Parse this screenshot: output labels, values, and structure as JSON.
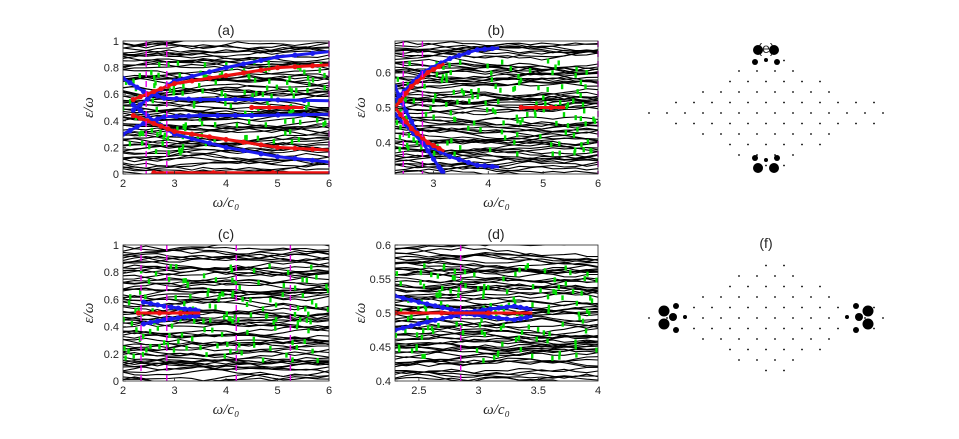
{
  "colors": {
    "bulk": "#000000",
    "green": "#00dd00",
    "red": "#ee1111",
    "blue": "#1a1aee",
    "magenta": "#ee00ee",
    "axis": "#262626"
  },
  "chart_data": [
    {
      "id": "a",
      "type": "line",
      "title": "(a)",
      "xlabel": "ω/c₀",
      "ylabel": "ε/ω",
      "xlim": [
        2,
        6
      ],
      "ylim": [
        0,
        1
      ],
      "xticks": [
        "2",
        "3",
        "4",
        "5",
        "6"
      ],
      "yticks": [
        "0",
        "0.2",
        "0.4",
        "0.6",
        "0.8",
        "1"
      ],
      "xtick_values": [
        2,
        3,
        4,
        5,
        6
      ],
      "ytick_values": [
        0,
        0.2,
        0.4,
        0.6,
        0.8,
        1
      ],
      "vlines": [
        2.45,
        2.85,
        6.0
      ],
      "series": [
        {
          "color": "blue",
          "points": [
            [
              2.0,
              0.72
            ],
            [
              2.4,
              0.62
            ],
            [
              2.8,
              0.57
            ],
            [
              3.5,
              0.56
            ],
            [
              4.5,
              0.56
            ],
            [
              6.0,
              0.55
            ]
          ]
        },
        {
          "color": "blue",
          "points": [
            [
              2.0,
              0.3
            ],
            [
              2.4,
              0.38
            ],
            [
              2.8,
              0.43
            ],
            [
              3.5,
              0.44
            ],
            [
              4.5,
              0.44
            ],
            [
              6.0,
              0.45
            ]
          ]
        },
        {
          "color": "blue",
          "points": [
            [
              2.2,
              0.48
            ],
            [
              2.6,
              0.6
            ],
            [
              3.0,
              0.7
            ],
            [
              4.0,
              0.8
            ],
            [
              5.0,
              0.88
            ],
            [
              6.0,
              0.92
            ]
          ]
        },
        {
          "color": "blue",
          "points": [
            [
              2.2,
              0.52
            ],
            [
              2.6,
              0.4
            ],
            [
              3.0,
              0.3
            ],
            [
              4.0,
              0.2
            ],
            [
              5.0,
              0.13
            ],
            [
              6.0,
              0.09
            ]
          ]
        },
        {
          "color": "red",
          "points": [
            [
              2.2,
              0.56
            ],
            [
              2.6,
              0.62
            ],
            [
              3.0,
              0.68
            ],
            [
              4.0,
              0.74
            ],
            [
              5.0,
              0.8
            ],
            [
              6.0,
              0.82
            ]
          ]
        },
        {
          "color": "red",
          "points": [
            [
              2.2,
              0.44
            ],
            [
              2.6,
              0.38
            ],
            [
              3.0,
              0.32
            ],
            [
              4.0,
              0.26
            ],
            [
              5.0,
              0.2
            ],
            [
              6.0,
              0.18
            ]
          ]
        },
        {
          "color": "red",
          "points": [
            [
              4.5,
              0.5
            ],
            [
              5.5,
              0.5
            ]
          ]
        },
        {
          "color": "red",
          "points": [
            [
              2.6,
              0.01
            ],
            [
              6.0,
              0.01
            ]
          ]
        }
      ]
    },
    {
      "id": "b",
      "type": "line",
      "title": "(b)",
      "xlabel": "ω/c₀",
      "ylabel": "ε/ω",
      "xlim": [
        2.3,
        6
      ],
      "ylim": [
        0.31,
        0.69
      ],
      "xticks": [
        "3",
        "4",
        "5",
        "6"
      ],
      "yticks": [
        "0.4",
        "0.5",
        "0.6"
      ],
      "xtick_values": [
        3,
        4,
        5,
        6
      ],
      "ytick_values": [
        0.4,
        0.5,
        0.6
      ],
      "vlines": [
        2.45,
        2.8,
        6.0
      ],
      "series": [
        {
          "color": "blue",
          "points": [
            [
              2.3,
              0.52
            ],
            [
              2.8,
              0.6
            ],
            [
              3.3,
              0.64
            ],
            [
              3.8,
              0.665
            ],
            [
              4.2,
              0.67
            ]
          ]
        },
        {
          "color": "blue",
          "points": [
            [
              2.3,
              0.48
            ],
            [
              2.8,
              0.4
            ],
            [
              3.3,
              0.36
            ],
            [
              3.8,
              0.335
            ],
            [
              4.2,
              0.33
            ]
          ]
        },
        {
          "color": "blue",
          "points": [
            [
              2.3,
              0.56
            ],
            [
              2.5,
              0.49
            ],
            [
              2.8,
              0.4
            ],
            [
              3.1,
              0.33
            ],
            [
              3.2,
              0.31
            ]
          ]
        },
        {
          "color": "red",
          "points": [
            [
              2.3,
              0.5
            ],
            [
              2.6,
              0.56
            ],
            [
              2.9,
              0.6
            ],
            [
              3.2,
              0.625
            ]
          ]
        },
        {
          "color": "red",
          "points": [
            [
              2.3,
              0.5
            ],
            [
              2.6,
              0.44
            ],
            [
              2.9,
              0.4
            ],
            [
              3.2,
              0.375
            ]
          ]
        },
        {
          "color": "red",
          "points": [
            [
              4.6,
              0.5
            ],
            [
              5.4,
              0.5
            ]
          ]
        }
      ]
    },
    {
      "id": "c",
      "type": "line",
      "title": "(c)",
      "xlabel": "ω/c₀",
      "ylabel": "ε/ω",
      "xlim": [
        2,
        6
      ],
      "ylim": [
        0,
        1
      ],
      "xticks": [
        "2",
        "3",
        "4",
        "5",
        "6"
      ],
      "yticks": [
        "0",
        "0.2",
        "0.4",
        "0.6",
        "0.8",
        "1"
      ],
      "xtick_values": [
        2,
        3,
        4,
        5,
        6
      ],
      "ytick_values": [
        0,
        0.2,
        0.4,
        0.6,
        0.8,
        1
      ],
      "vlines": [
        2.35,
        2.85,
        4.2,
        5.25
      ],
      "series": [
        {
          "color": "blue",
          "points": [
            [
              2.4,
              0.58
            ],
            [
              2.8,
              0.55
            ],
            [
              3.2,
              0.53
            ],
            [
              3.5,
              0.52
            ]
          ]
        },
        {
          "color": "blue",
          "points": [
            [
              2.4,
              0.42
            ],
            [
              2.8,
              0.45
            ],
            [
              3.2,
              0.47
            ],
            [
              3.5,
              0.48
            ]
          ]
        },
        {
          "color": "red",
          "points": [
            [
              2.3,
              0.5
            ],
            [
              3.5,
              0.5
            ]
          ]
        }
      ]
    },
    {
      "id": "d",
      "type": "line",
      "title": "(d)",
      "xlabel": "ω/c₀",
      "ylabel": "ε/ω",
      "xlim": [
        2.3,
        4
      ],
      "ylim": [
        0.4,
        0.6
      ],
      "xticks": [
        "2.5",
        "3",
        "3.5",
        "4"
      ],
      "yticks": [
        "0.4",
        "0.45",
        "0.5",
        "0.55",
        "0.6"
      ],
      "xtick_values": [
        2.5,
        3,
        3.5,
        4
      ],
      "ytick_values": [
        0.4,
        0.45,
        0.5,
        0.55,
        0.6
      ],
      "vlines": [
        2.85
      ],
      "series": [
        {
          "color": "blue",
          "points": [
            [
              2.3,
              0.525
            ],
            [
              2.5,
              0.516
            ],
            [
              2.7,
              0.508
            ],
            [
              2.9,
              0.501
            ],
            [
              3.1,
              0.506
            ],
            [
              3.3,
              0.51
            ],
            [
              3.45,
              0.505
            ]
          ]
        },
        {
          "color": "blue",
          "points": [
            [
              2.3,
              0.475
            ],
            [
              2.5,
              0.484
            ],
            [
              2.7,
              0.492
            ],
            [
              2.9,
              0.499
            ],
            [
              3.1,
              0.494
            ],
            [
              3.3,
              0.49
            ],
            [
              3.45,
              0.495
            ]
          ]
        },
        {
          "color": "red",
          "points": [
            [
              2.3,
              0.5
            ],
            [
              3.45,
              0.5
            ]
          ]
        }
      ]
    }
  ],
  "panels": {
    "e": {
      "label": "(e)"
    },
    "f": {
      "label": "(f)"
    }
  }
}
